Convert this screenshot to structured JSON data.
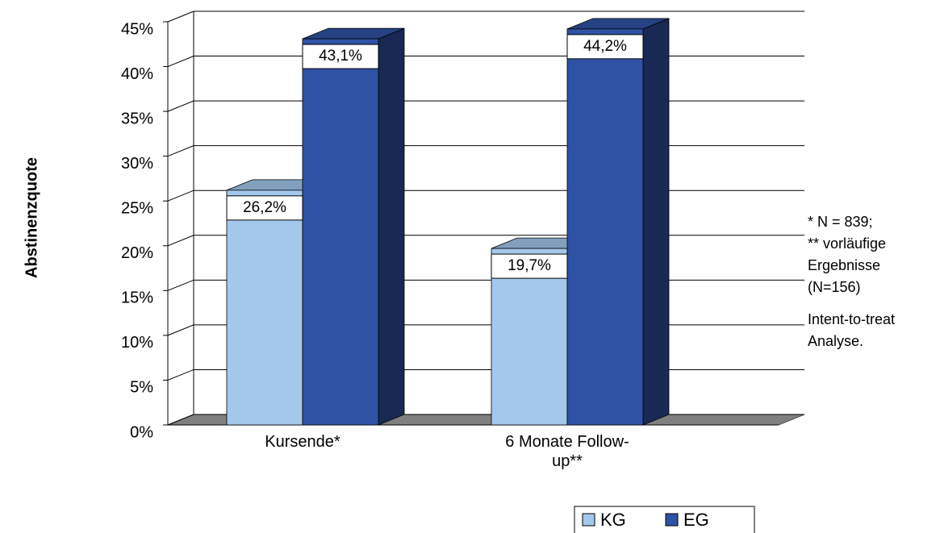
{
  "chart_data": {
    "type": "bar3d",
    "y_label": "Abstinenzquote",
    "categories": [
      "Kursende*",
      "6 Monate Follow-up**"
    ],
    "series": [
      {
        "name": "KG",
        "color": "#a3c8ec",
        "values": [
          26.2,
          19.7
        ],
        "value_labels": [
          "26,2%",
          "19,7%"
        ]
      },
      {
        "name": "EG",
        "color": "#2f52a5",
        "values": [
          43.1,
          44.2
        ],
        "value_labels": [
          "43,1%",
          "44,2%"
        ]
      }
    ],
    "ylim": [
      0,
      45
    ],
    "yticks": [
      {
        "value": 0,
        "label": "0%"
      },
      {
        "value": 5,
        "label": "5%"
      },
      {
        "value": 10,
        "label": "10%"
      },
      {
        "value": 15,
        "label": "15%"
      },
      {
        "value": 20,
        "label": "20%"
      },
      {
        "value": 25,
        "label": "25%"
      },
      {
        "value": 30,
        "label": "30%"
      },
      {
        "value": 35,
        "label": "35%"
      },
      {
        "value": 40,
        "label": "40%"
      },
      {
        "value": 45,
        "label": "45%"
      }
    ],
    "grid": true,
    "annotations": [
      [
        "* N = 839;",
        "** vorläufige",
        "Ergebnisse",
        "(N=156)"
      ],
      [
        "Intent-to-treat",
        "Analyse."
      ]
    ],
    "legend": "bottom"
  }
}
